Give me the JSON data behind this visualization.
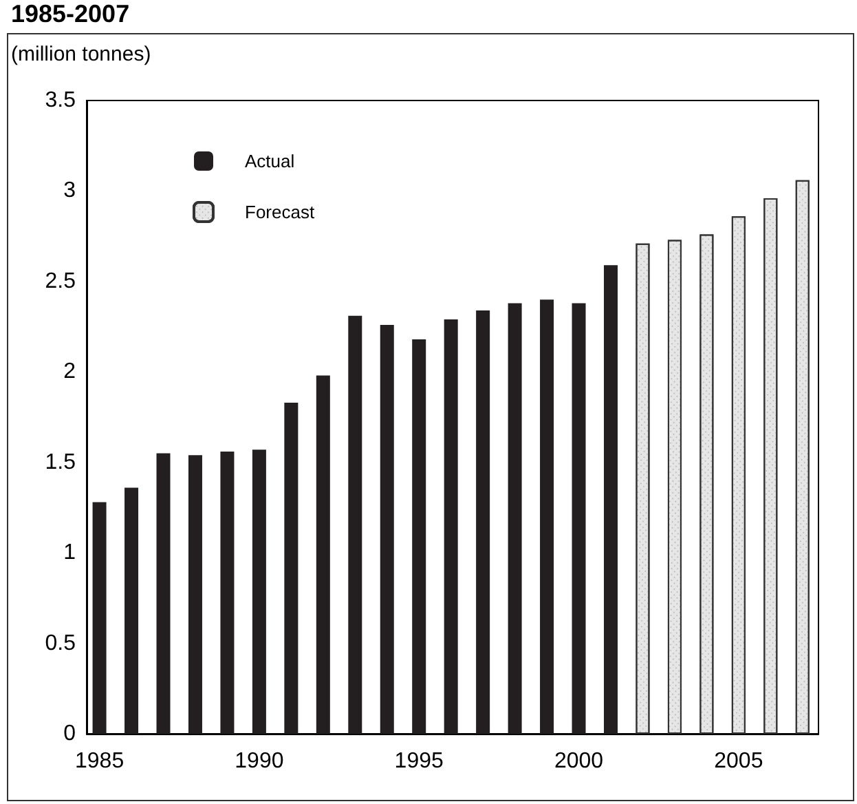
{
  "chart_data": {
    "type": "bar",
    "title": "1985-2007",
    "ylabel": "(million tonnes)",
    "xlim": [
      1984.6,
      2007.5
    ],
    "xticks": [
      1985,
      1990,
      1995,
      2000,
      2005
    ],
    "ylim": [
      0,
      3.5
    ],
    "yticks": [
      0,
      0.5,
      1,
      1.5,
      2,
      2.5,
      3,
      3.5
    ],
    "grid": false,
    "legend": "top left",
    "series": [
      {
        "name": "Actual",
        "color": "#231f20",
        "x": [
          1985,
          1986,
          1987,
          1988,
          1989,
          1990,
          1991,
          1992,
          1993,
          1994,
          1995,
          1996,
          1997,
          1998,
          1999,
          2000,
          2001
        ],
        "values": [
          1.28,
          1.36,
          1.55,
          1.54,
          1.56,
          1.57,
          1.83,
          1.98,
          2.31,
          2.26,
          2.18,
          2.29,
          2.34,
          2.38,
          2.4,
          2.38,
          2.59
        ]
      },
      {
        "name": "Forecast",
        "color": "#e6e6e6",
        "x": [
          2002,
          2003,
          2004,
          2005,
          2006,
          2007
        ],
        "values": [
          2.71,
          2.73,
          2.76,
          2.86,
          2.96,
          3.06
        ]
      }
    ]
  }
}
